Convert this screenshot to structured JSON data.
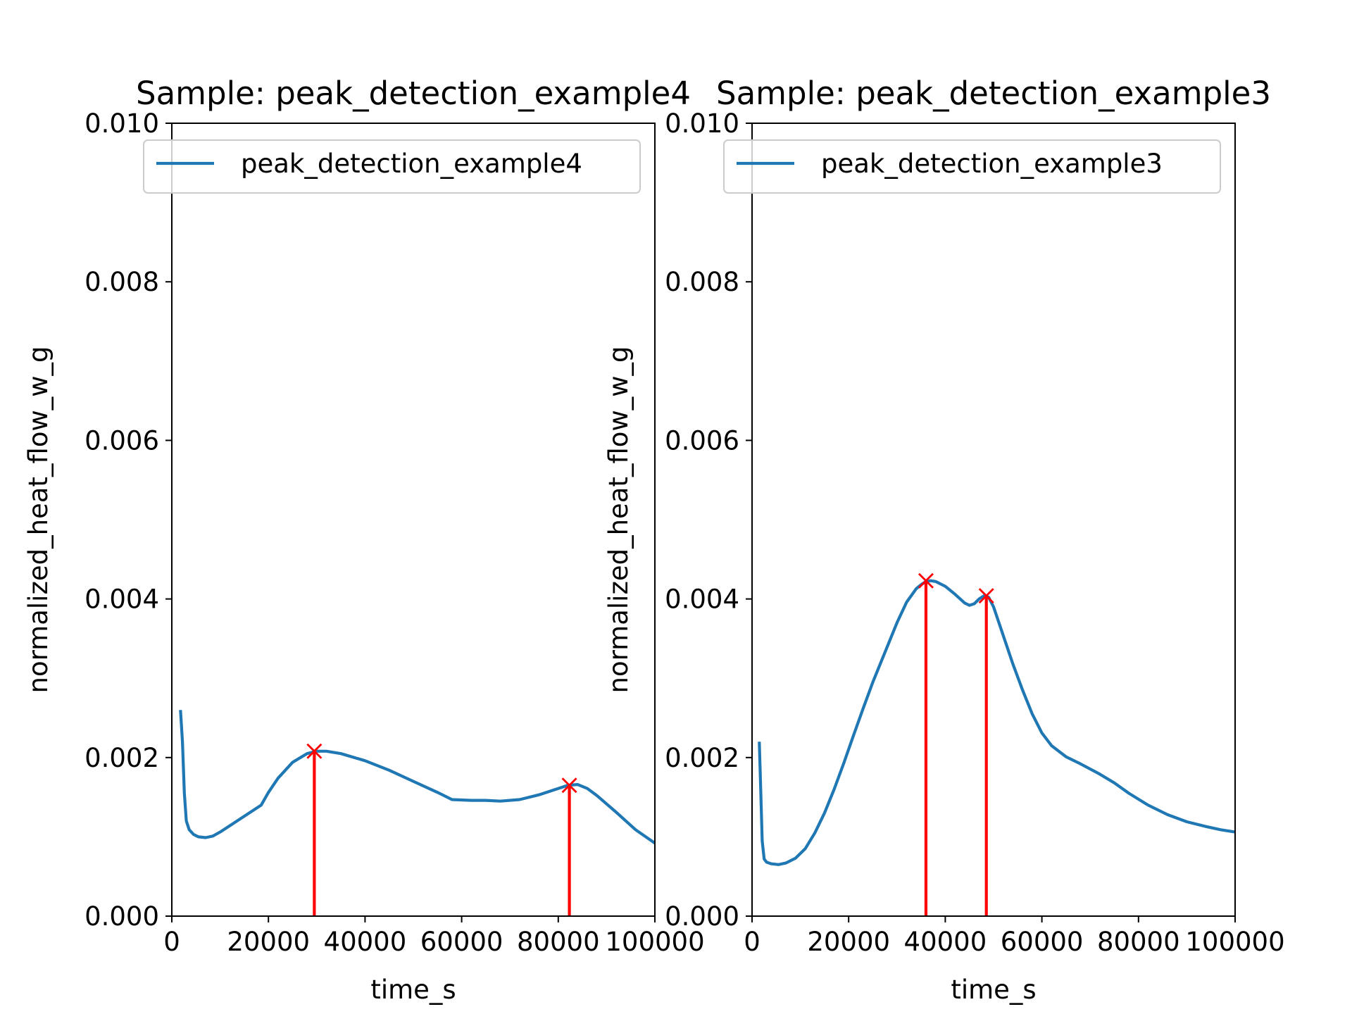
{
  "chart_data": [
    {
      "type": "line",
      "title": "Sample: peak_detection_example4",
      "xlabel": "time_s",
      "ylabel": "normalized_heat_flow_w_g",
      "xlim": [
        0,
        100000
      ],
      "ylim": [
        0,
        0.01
      ],
      "xticks": [
        0,
        20000,
        40000,
        60000,
        80000,
        100000
      ],
      "xtick_labels": [
        "0",
        "20000",
        "40000",
        "60000",
        "80000",
        "100000"
      ],
      "yticks": [
        0,
        0.002,
        0.004,
        0.006,
        0.008,
        0.01
      ],
      "ytick_labels": [
        "0.000",
        "0.002",
        "0.004",
        "0.006",
        "0.008",
        "0.010"
      ],
      "grid": false,
      "legend_position": "top-right",
      "series": [
        {
          "name": "peak_detection_example4",
          "color": "#1f77b4",
          "x": [
            1800,
            2200,
            2600,
            3000,
            3600,
            4500,
            5500,
            7000,
            8500,
            10000,
            13000,
            17000,
            18500,
            20000,
            22000,
            25000,
            28000,
            30000,
            32000,
            35000,
            40000,
            45000,
            50000,
            55000,
            58000,
            62000,
            65000,
            68000,
            72000,
            76000,
            80000,
            82000,
            84000,
            86000,
            88000,
            92000,
            96000,
            100000
          ],
          "y": [
            0.0026,
            0.0022,
            0.00155,
            0.0012,
            0.00109,
            0.00103,
            0.001,
            0.00099,
            0.00101,
            0.00106,
            0.00118,
            0.00134,
            0.0014,
            0.00156,
            0.00174,
            0.00194,
            0.00205,
            0.00208,
            0.00208,
            0.00205,
            0.00196,
            0.00184,
            0.0017,
            0.00156,
            0.00147,
            0.00146,
            0.00146,
            0.00145,
            0.00147,
            0.00153,
            0.00161,
            0.00165,
            0.00166,
            0.00161,
            0.00152,
            0.00131,
            0.00109,
            0.00092
          ]
        }
      ],
      "peaks": {
        "color": "#ff0000",
        "x": [
          29500,
          82300
        ],
        "y": [
          0.00208,
          0.00165
        ]
      }
    },
    {
      "type": "line",
      "title": "Sample: peak_detection_example3",
      "xlabel": "time_s",
      "ylabel": "normalized_heat_flow_w_g",
      "xlim": [
        0,
        100000
      ],
      "ylim": [
        0,
        0.01
      ],
      "xticks": [
        0,
        20000,
        40000,
        60000,
        80000,
        100000
      ],
      "xtick_labels": [
        "0",
        "20000",
        "40000",
        "60000",
        "80000",
        "100000"
      ],
      "yticks": [
        0,
        0.002,
        0.004,
        0.006,
        0.008,
        0.01
      ],
      "ytick_labels": [
        "0.000",
        "0.002",
        "0.004",
        "0.006",
        "0.008",
        "0.010"
      ],
      "grid": false,
      "legend_position": "top-right",
      "series": [
        {
          "name": "peak_detection_example3",
          "color": "#1f77b4",
          "x": [
            1500,
            1800,
            2100,
            2500,
            3000,
            4000,
            5500,
            7000,
            9000,
            11000,
            13000,
            15000,
            17000,
            19000,
            21000,
            23000,
            25000,
            27000,
            28000,
            30000,
            32000,
            34000,
            35000,
            36000,
            37000,
            38000,
            40000,
            42000,
            44000,
            45000,
            46000,
            47000,
            48000,
            49000,
            50000,
            52000,
            54000,
            56000,
            58000,
            60000,
            62000,
            65000,
            68000,
            72000,
            75000,
            78000,
            82000,
            86000,
            90000,
            94000,
            97000,
            100000
          ],
          "y": [
            0.0022,
            0.0016,
            0.00095,
            0.00072,
            0.00068,
            0.00066,
            0.00065,
            0.00067,
            0.00073,
            0.00085,
            0.00105,
            0.0013,
            0.0016,
            0.00193,
            0.00228,
            0.00262,
            0.00295,
            0.00325,
            0.0034,
            0.0037,
            0.00396,
            0.00413,
            0.00418,
            0.00422,
            0.00423,
            0.00422,
            0.00416,
            0.00406,
            0.00395,
            0.00392,
            0.00394,
            0.004,
            0.00404,
            0.00402,
            0.0039,
            0.00354,
            0.00318,
            0.00285,
            0.00255,
            0.00231,
            0.00215,
            0.00201,
            0.00192,
            0.00179,
            0.00168,
            0.00155,
            0.0014,
            0.00128,
            0.00119,
            0.00113,
            0.00109,
            0.00106
          ]
        }
      ],
      "peaks": {
        "color": "#ff0000",
        "x": [
          36000,
          48500
        ],
        "y": [
          0.00423,
          0.00404
        ]
      }
    }
  ]
}
